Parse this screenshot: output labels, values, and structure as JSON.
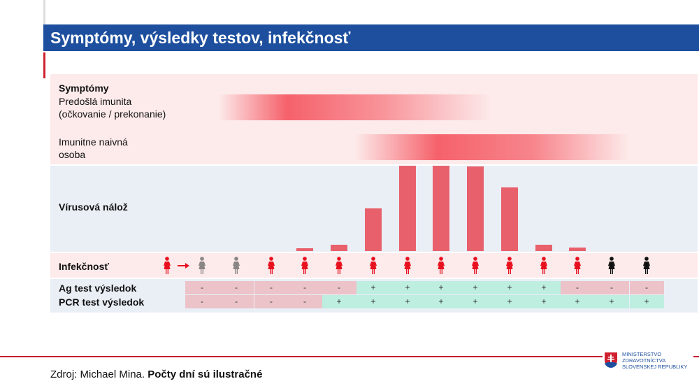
{
  "header": {
    "title": "Symptómy, výsledky testov, infekčnosť"
  },
  "symptoms": {
    "title": "Symptómy",
    "immune_label_1": "Predošlá imunita",
    "immune_label_2": "(očkovanie / prekonanie)",
    "naive_label_1": "Imunitne naivná",
    "naive_label_2": "osoba"
  },
  "viral_load": {
    "label": "Vírusová nálož",
    "values": [
      0.03,
      0.07,
      0.5,
      1.0,
      1.0,
      0.99,
      0.75,
      0.07,
      0.04
    ]
  },
  "infectiousness": {
    "label": "Infekčnosť",
    "source_color": "red",
    "people_colors": [
      "grey",
      "grey",
      "red",
      "red",
      "red",
      "red",
      "red",
      "red",
      "red",
      "red",
      "red",
      "red",
      "black",
      "black"
    ]
  },
  "tests": {
    "ag_label": "Ag test výsledok",
    "pcr_label": "PCR test výsledok",
    "ag": [
      "-",
      "-",
      "-",
      "-",
      "-",
      "+",
      "+",
      "+",
      "+",
      "+",
      "+",
      "-",
      "-",
      "-"
    ],
    "pcr": [
      "-",
      "-",
      "-",
      "-",
      "+",
      "+",
      "+",
      "+",
      "+",
      "+",
      "+",
      "+",
      "+",
      "+"
    ]
  },
  "colors": {
    "header": "#1d4f9e",
    "red": "#e8101e",
    "grey": "#8a8585",
    "black": "#111111",
    "bar": "#e8606c",
    "neg": "#ebc3c9",
    "pos": "#bdeee0"
  },
  "footer": {
    "source": "Zdroj: Michael Mina. ",
    "note": "Počty dní sú ilustračné"
  },
  "logo": {
    "line1": "MINISTERSTVO",
    "line2": "ZDRAVOTNÍCTVA",
    "line3": "SLOVENSKEJ REPUBLIKY"
  }
}
